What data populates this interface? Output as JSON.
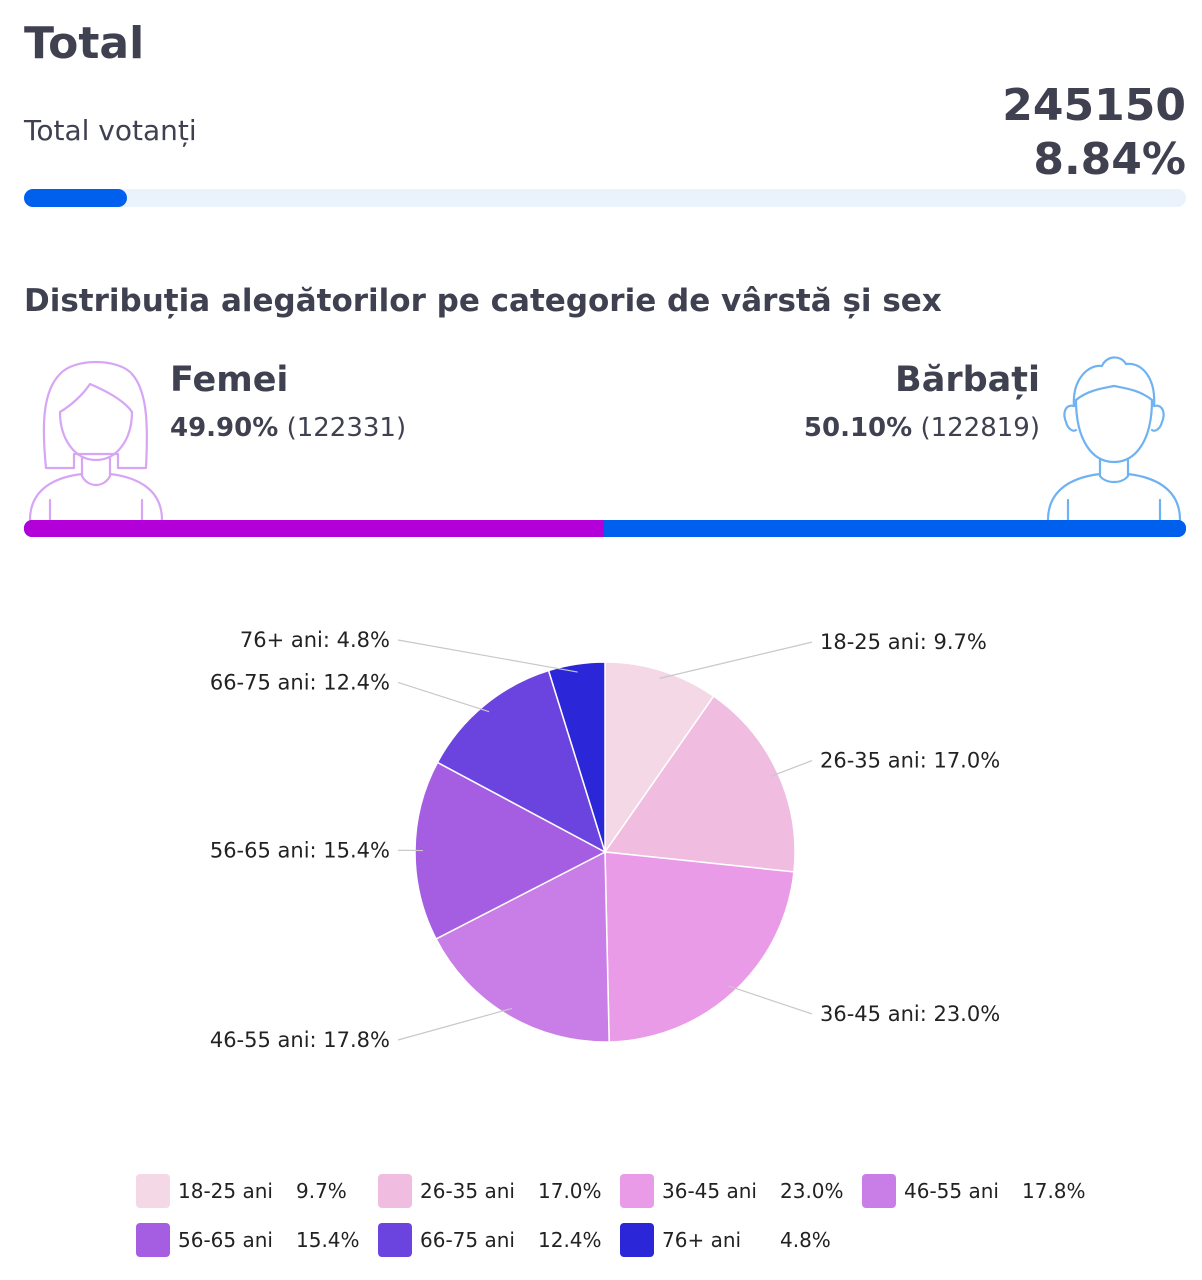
{
  "header": {
    "title": "Total"
  },
  "turnout": {
    "label": "Total votanți",
    "count": "245150",
    "percent_label": "8.84%",
    "progress_fraction": 0.0884
  },
  "distribution": {
    "title": "Distribuția alegătorilor pe categorie de vârstă și sex",
    "female": {
      "name": "Femei",
      "percent": "49.90%",
      "count": "(122331)",
      "share": 0.499,
      "color": "#b400d8"
    },
    "male": {
      "name": "Bărbați",
      "percent": "50.10%",
      "count": "(122819)",
      "share": 0.501,
      "color": "#0060ee"
    }
  },
  "chart_data": {
    "type": "pie",
    "slices": [
      {
        "label": "18-25 ani",
        "value": 9.7,
        "display": "9.7%",
        "callout": "18-25 ani: 9.7%",
        "color": "#f5d8e6"
      },
      {
        "label": "26-35 ani",
        "value": 17.0,
        "display": "17.0%",
        "callout": "26-35 ani: 17.0%",
        "color": "#f0bce0"
      },
      {
        "label": "36-45 ani",
        "value": 23.0,
        "display": "23.0%",
        "callout": "36-45 ani: 23.0%",
        "color": "#e99be8"
      },
      {
        "label": "46-55 ani",
        "value": 17.8,
        "display": "17.8%",
        "callout": "46-55 ani: 17.8%",
        "color": "#c97de6"
      },
      {
        "label": "56-65 ani",
        "value": 15.4,
        "display": "15.4%",
        "callout": "56-65 ani: 15.4%",
        "color": "#a55ee2"
      },
      {
        "label": "66-75 ani",
        "value": 12.4,
        "display": "12.4%",
        "callout": "66-75 ani: 12.4%",
        "color": "#6b44e0"
      },
      {
        "label": "76+ ani",
        "value": 4.8,
        "display": "4.8%",
        "callout": "76+ ani: 4.8%",
        "color": "#2b27d8"
      }
    ],
    "legend_position": "bottom"
  }
}
